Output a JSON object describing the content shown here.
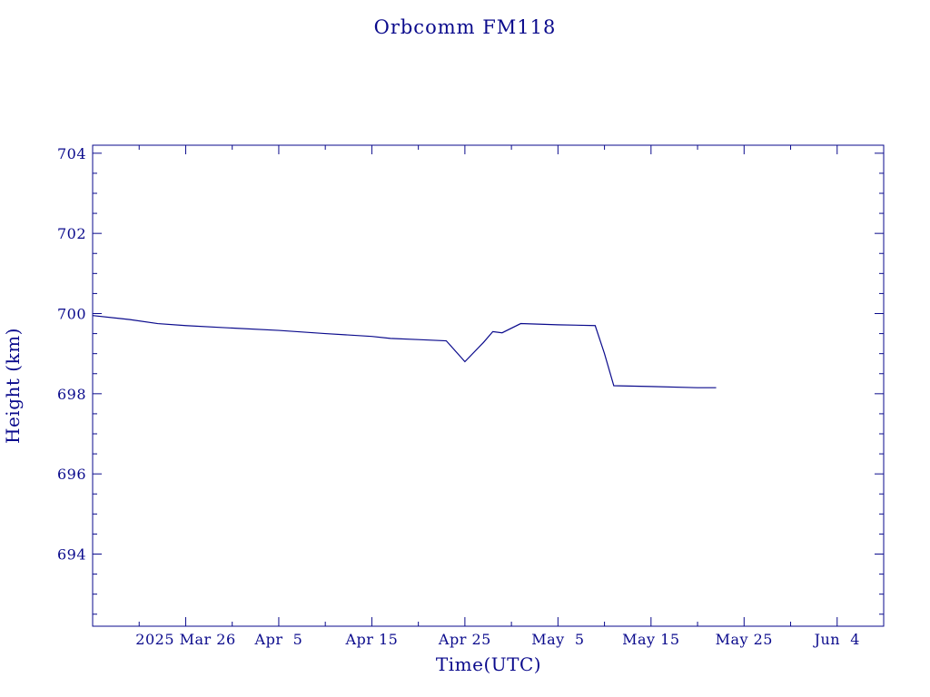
{
  "chart_data": {
    "type": "line",
    "title": "Orbcomm FM118",
    "xlabel": "Time(UTC)",
    "ylabel": "Height (km)",
    "ylim": [
      692.2,
      704.2
    ],
    "xlim": [
      "2025-03-16",
      "2025-06-09"
    ],
    "y_ticks": [
      694,
      696,
      698,
      700,
      702,
      704
    ],
    "x_ticks": [
      {
        "date": "2025-03-26",
        "label": "2025 Mar 26"
      },
      {
        "date": "2025-04-05",
        "label": "Apr  5"
      },
      {
        "date": "2025-04-15",
        "label": "Apr 15"
      },
      {
        "date": "2025-04-25",
        "label": "Apr 25"
      },
      {
        "date": "2025-05-05",
        "label": "May  5"
      },
      {
        "date": "2025-05-15",
        "label": "May 15"
      },
      {
        "date": "2025-05-25",
        "label": "May 25"
      },
      {
        "date": "2025-06-04",
        "label": "Jun  4"
      }
    ],
    "x_minor_ticks_days": 5,
    "y_minor_step": 0.5,
    "grid": false,
    "color": "#0a0a8c",
    "series": [
      {
        "x": [
          "2025-03-16",
          "2025-03-20",
          "2025-03-23",
          "2025-03-26",
          "2025-03-30",
          "2025-04-05",
          "2025-04-10",
          "2025-04-15",
          "2025-04-17",
          "2025-04-20",
          "2025-04-23",
          "2025-04-25",
          "2025-04-27",
          "2025-04-28",
          "2025-04-29",
          "2025-05-01",
          "2025-05-05",
          "2025-05-09",
          "2025-05-10",
          "2025-05-11",
          "2025-05-15",
          "2025-05-20",
          "2025-05-22"
        ],
        "y": [
          699.95,
          699.85,
          699.75,
          699.7,
          699.65,
          699.58,
          699.5,
          699.43,
          699.38,
          699.35,
          699.32,
          698.8,
          699.28,
          699.55,
          699.52,
          699.75,
          699.72,
          699.7,
          699.0,
          698.2,
          698.18,
          698.15,
          698.15
        ]
      }
    ]
  }
}
